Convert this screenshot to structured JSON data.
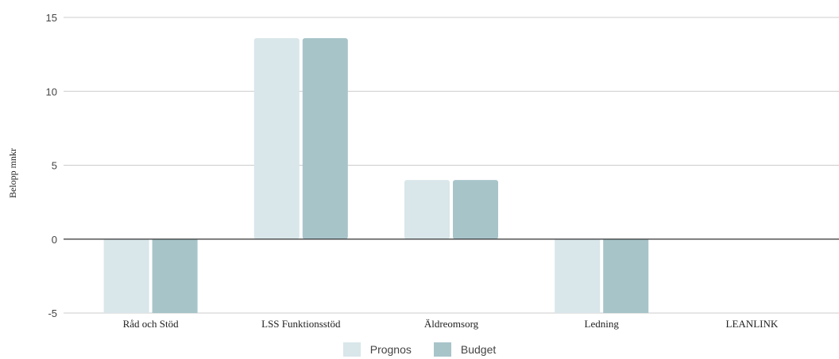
{
  "chart_data": {
    "type": "bar",
    "title": "",
    "xlabel": "",
    "ylabel": "Belopp mnkr",
    "ylim": [
      -5,
      15
    ],
    "yticks": [
      -5,
      0,
      5,
      10,
      15
    ],
    "grid": true,
    "legend_position": "bottom",
    "categories": [
      "Råd och Stöd",
      "LSS Funktionsstöd",
      "Äldreomsorg",
      "Ledning",
      "LEANLINK"
    ],
    "series": [
      {
        "name": "Prognos",
        "color": "#d9e6ea",
        "values": [
          -5,
          13.6,
          4,
          -5,
          0
        ]
      },
      {
        "name": "Budget",
        "color": "#a7c4c9",
        "values": [
          -5,
          13.6,
          4,
          -5,
          0
        ]
      }
    ]
  }
}
